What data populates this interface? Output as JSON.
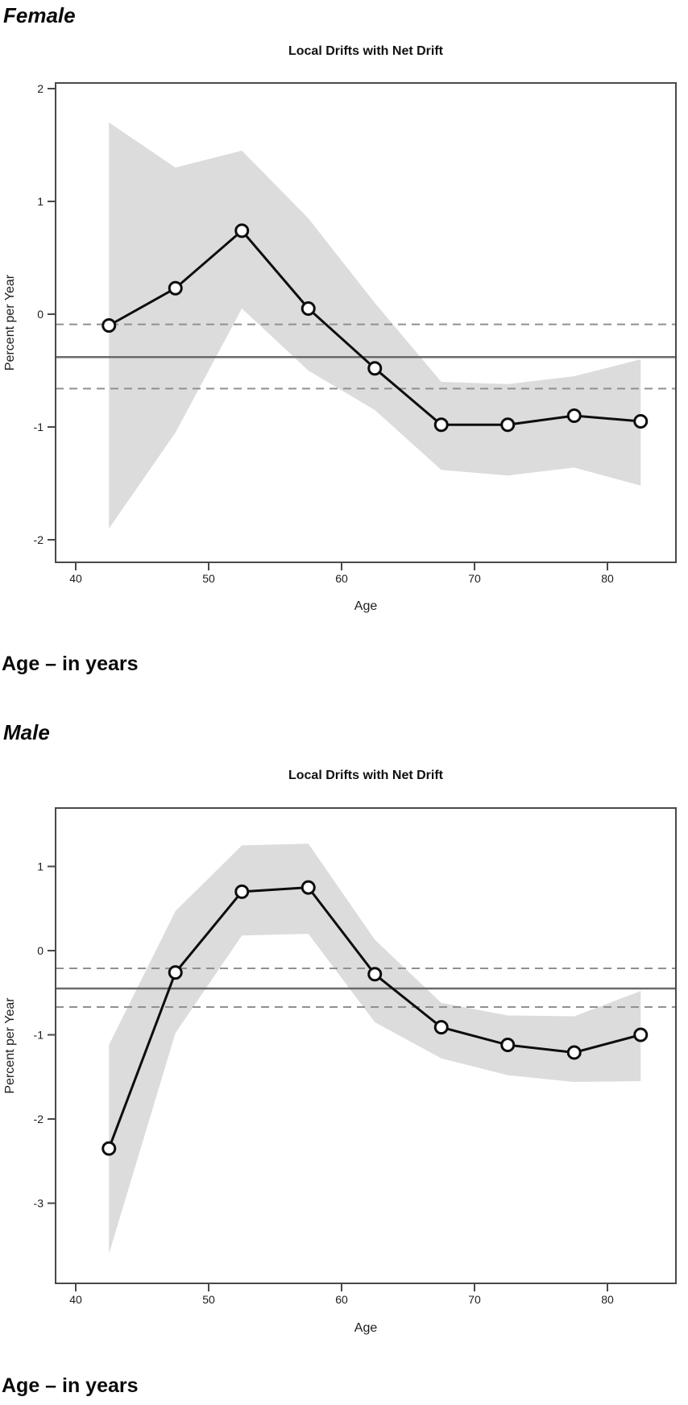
{
  "sections": [
    {
      "heading": "Female",
      "caption": "Age – in years"
    },
    {
      "heading": "Male",
      "caption": "Age – in years"
    }
  ],
  "colors": {
    "band": "#dcdcdc",
    "data_line": "#0d0d0d",
    "marker_fill": "#ffffff",
    "net_drift_line": "#6a6a6a",
    "net_drift_ci_line": "#909090",
    "plot_border": "#494949",
    "text": "#1c1c1c"
  },
  "chart_data": [
    {
      "id": "female-local-drifts",
      "type": "line",
      "title": "Local Drifts with Net Drift",
      "xlabel": "Age",
      "ylabel": "Percent per Year",
      "x_ticks": [
        40,
        50,
        60,
        70,
        80
      ],
      "y_ticks": [
        2,
        1,
        0,
        -1,
        -2
      ],
      "xlim": [
        38.4,
        85.2
      ],
      "ylim": [
        -2.2,
        2.05
      ],
      "ages": [
        42.5,
        47.5,
        52.5,
        57.5,
        62.5,
        67.5,
        72.5,
        77.5,
        82.5
      ],
      "local_drift": [
        -0.1,
        0.23,
        0.74,
        0.05,
        -0.48,
        -0.98,
        -0.98,
        -0.9,
        -0.95
      ],
      "ci_upper": [
        1.7,
        1.3,
        1.45,
        0.85,
        0.1,
        -0.6,
        -0.62,
        -0.55,
        -0.4
      ],
      "ci_lower": [
        -1.9,
        -1.05,
        0.05,
        -0.5,
        -0.85,
        -1.38,
        -1.43,
        -1.36,
        -1.52
      ],
      "net_drift": -0.38,
      "net_drift_ci": [
        -0.66,
        -0.09
      ],
      "legend": "none",
      "grid": false
    },
    {
      "id": "male-local-drifts",
      "type": "line",
      "title": "Local Drifts with Net Drift",
      "xlabel": "Age",
      "ylabel": "Percent per Year",
      "x_ticks": [
        40,
        50,
        60,
        70,
        80
      ],
      "y_ticks": [
        1,
        0,
        -1,
        -2,
        -3
      ],
      "xlim": [
        38.4,
        85.2
      ],
      "ylim": [
        -3.95,
        1.7
      ],
      "ages": [
        42.5,
        47.5,
        52.5,
        57.5,
        62.5,
        67.5,
        72.5,
        77.5,
        82.5
      ],
      "local_drift": [
        -2.35,
        -0.26,
        0.7,
        0.75,
        -0.28,
        -0.91,
        -1.12,
        -1.21,
        -1.0
      ],
      "ci_upper": [
        -1.12,
        0.47,
        1.25,
        1.27,
        0.13,
        -0.62,
        -0.77,
        -0.78,
        -0.48
      ],
      "ci_lower": [
        -3.6,
        -0.98,
        0.18,
        0.2,
        -0.85,
        -1.28,
        -1.48,
        -1.56,
        -1.55
      ],
      "net_drift": -0.45,
      "net_drift_ci": [
        -0.67,
        -0.21
      ],
      "legend": "none",
      "grid": false
    }
  ]
}
